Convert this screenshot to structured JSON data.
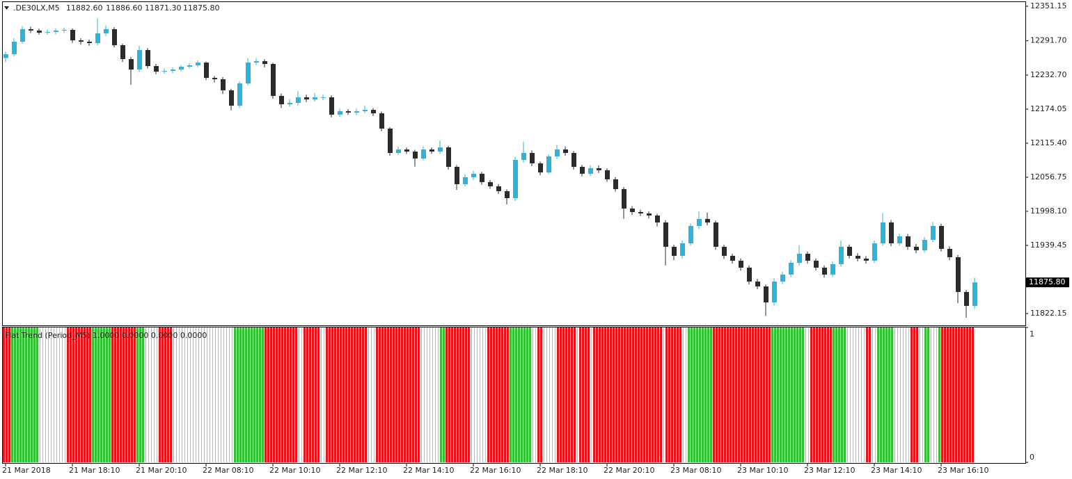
{
  "header": {
    "symbol": ".DE30LX,M5",
    "ohlc": [
      "11882.60",
      "11886.60",
      "11871.30",
      "11875.80"
    ]
  },
  "chart_data": [
    {
      "type": "candlestick",
      "up_color": "#2fb3da",
      "down_color": "#2b2b2b",
      "categories": [
        "21 Mar 2018",
        null,
        null,
        null,
        null,
        null,
        null,
        null,
        "21 Mar 18:10",
        null,
        null,
        null,
        null,
        null,
        null,
        null,
        "21 Mar 20:10",
        null,
        null,
        null,
        null,
        null,
        null,
        null,
        "22 Mar 08:10",
        null,
        null,
        null,
        null,
        null,
        null,
        null,
        "22 Mar 10:10",
        null,
        null,
        null,
        null,
        null,
        null,
        null,
        "22 Mar 12:10",
        null,
        null,
        null,
        null,
        null,
        null,
        null,
        "22 Mar 14:10",
        null,
        null,
        null,
        null,
        null,
        null,
        null,
        "22 Mar 16:10",
        null,
        null,
        null,
        null,
        null,
        null,
        null,
        "22 Mar 18:10",
        null,
        null,
        null,
        null,
        null,
        null,
        null,
        "22 Mar 20:10",
        null,
        null,
        null,
        null,
        null,
        null,
        null,
        "23 Mar 08:10",
        null,
        null,
        null,
        null,
        null,
        null,
        null,
        "23 Mar 10:10",
        null,
        null,
        null,
        null,
        null,
        null,
        null,
        "23 Mar 12:10",
        null,
        null,
        null,
        null,
        null,
        null,
        null,
        "23 Mar 14:10",
        null,
        null,
        null,
        null,
        null,
        null,
        null,
        "23 Mar 16:10",
        null,
        null,
        null,
        null
      ],
      "open": [
        12262.0,
        12268.6,
        12290.1,
        12311.7,
        12309.3,
        12305.7,
        12306.9,
        12309.3,
        12310.5,
        12292.5,
        12290.1,
        12287.7,
        12304.5,
        12311.7,
        12284.1,
        12260.2,
        12242.2,
        12275.8,
        12248.2,
        12238.6,
        12239.8,
        12242.2,
        12247.0,
        12249.4,
        12254.2,
        12227.9,
        12225.5,
        12206.4,
        12180.0,
        12218.3,
        12254.2,
        12256.6,
        12251.8,
        12196.8,
        12182.4,
        12184.8,
        12194.4,
        12190.8,
        12194.4,
        12194.4,
        12164.5,
        12170.5,
        12168.1,
        12170.5,
        12172.8,
        12166.8,
        12140.5,
        12098.6,
        12104.6,
        12101.0,
        12089.0,
        12104.6,
        12101.0,
        12108.2,
        12074.7,
        12044.8,
        12056.8,
        12062.8,
        12048.4,
        12041.2,
        12032.8,
        12020.8,
        12086.6,
        12098.6,
        12080.7,
        12065.1,
        12092.6,
        12104.6,
        12098.6,
        12074.7,
        12062.8,
        12072.3,
        12068.8,
        12053.2,
        12036.4,
        12002.9,
        11996.9,
        11994.5,
        11990.9,
        11978.9,
        11937.1,
        11921.5,
        11943.0,
        11972.9,
        11985.0,
        11978.9,
        11937.1,
        11921.5,
        11913.1,
        11901.1,
        11877.2,
        11868.8,
        11841.3,
        11877.2,
        11889.2,
        11909.5,
        11925.1,
        11913.1,
        11901.1,
        11889.2,
        11907.1,
        11937.1,
        11921.5,
        11916.7,
        11913.1,
        11943.0,
        11978.9,
        11943.0,
        11955.0,
        11937.1,
        11931.1,
        11949.0,
        11972.9,
        11933.5,
        11919.1,
        11859.3,
        11835.3
      ],
      "high": [
        12273.0,
        12296.0,
        12317.0,
        12316.0,
        12313.0,
        12311.0,
        12313.0,
        12314.0,
        12313.0,
        12296.0,
        12294.0,
        12330.0,
        12318.0,
        12315.0,
        12287.0,
        12264.0,
        12283.0,
        12279.0,
        12252.0,
        12244.0,
        12246.0,
        12250.0,
        12253.0,
        12258.0,
        12256.0,
        12231.0,
        12229.0,
        12209.0,
        12222.0,
        12262.0,
        12262.0,
        12260.0,
        12254.0,
        12201.0,
        12191.0,
        12205.0,
        12199.0,
        12202.0,
        12199.0,
        12198.0,
        12175.0,
        12174.0,
        12175.0,
        12180.0,
        12176.0,
        12170.0,
        12143.0,
        12110.0,
        12108.0,
        12104.0,
        12110.0,
        12108.0,
        12120.0,
        12111.0,
        12078.0,
        12062.0,
        12068.0,
        12066.0,
        12052.0,
        12045.0,
        12036.0,
        12092.0,
        12118.0,
        12103.0,
        12084.0,
        12096.0,
        12112.0,
        12110.0,
        12102.0,
        12078.0,
        12077.0,
        12077.0,
        12072.0,
        12057.0,
        12040.0,
        12007.0,
        12001.0,
        11998.0,
        11994.0,
        11983.0,
        11941.0,
        11948.0,
        11977.0,
        11998.0,
        11996.0,
        11982.0,
        11941.0,
        11925.0,
        11917.0,
        11905.0,
        11882.0,
        11872.0,
        11883.0,
        11894.0,
        11914.0,
        11940.0,
        11929.0,
        11917.0,
        11905.0,
        11912.0,
        11948.0,
        11941.0,
        11926.0,
        11921.0,
        11948.0,
        11995.0,
        11983.0,
        11960.0,
        11959.0,
        11942.0,
        11954.0,
        11980.0,
        11977.0,
        11938.0,
        11923.0,
        11863.0,
        11884.0
      ],
      "low": [
        12255.0,
        12265.0,
        12287.0,
        12305.0,
        12302.0,
        12302.0,
        12303.0,
        12305.0,
        12288.0,
        12285.0,
        12283.0,
        12284.0,
        12300.0,
        12280.0,
        12255.0,
        12216.0,
        12238.0,
        12244.0,
        12234.0,
        12235.0,
        12236.0,
        12239.0,
        12244.0,
        12246.0,
        12224.0,
        12220.0,
        12200.0,
        12172.0,
        12176.0,
        12215.0,
        12250.0,
        12246.0,
        12192.0,
        12176.0,
        12178.0,
        12180.0,
        12186.0,
        12187.0,
        12189.0,
        12160.0,
        12161.0,
        12164.0,
        12164.0,
        12167.0,
        12162.0,
        12136.0,
        12094.0,
        12095.0,
        12097.0,
        12075.0,
        12086.0,
        12097.0,
        12097.0,
        12070.0,
        12035.0,
        12041.0,
        12052.0,
        12044.0,
        12037.0,
        12028.0,
        12010.0,
        12016.0,
        12082.0,
        12076.0,
        12060.0,
        12062.0,
        12088.0,
        12094.0,
        12070.0,
        12058.0,
        12059.0,
        12064.0,
        12049.0,
        12032.0,
        11985.0,
        11992.0,
        11990.0,
        11986.0,
        11972.0,
        11905.0,
        11914.0,
        11917.0,
        11939.0,
        11968.0,
        11974.0,
        11932.0,
        11916.0,
        11908.0,
        11896.0,
        11872.0,
        11864.0,
        11818.0,
        11836.0,
        11873.0,
        11885.0,
        11905.0,
        11908.0,
        11896.0,
        11884.0,
        11885.0,
        11903.0,
        11917.0,
        11912.0,
        11908.0,
        11909.0,
        11939.0,
        11938.0,
        11939.0,
        11932.0,
        11926.0,
        11927.0,
        11945.0,
        11929.0,
        11914.0,
        11840.0,
        11815.0,
        11830.0
      ],
      "close": [
        12268.6,
        12290.1,
        12311.7,
        12309.3,
        12305.7,
        12306.9,
        12309.3,
        12310.5,
        12292.5,
        12290.1,
        12287.7,
        12304.5,
        12311.7,
        12284.1,
        12260.2,
        12242.2,
        12275.8,
        12248.2,
        12238.6,
        12239.8,
        12242.2,
        12247.0,
        12249.4,
        12254.2,
        12227.9,
        12225.5,
        12206.4,
        12180.0,
        12218.3,
        12254.2,
        12256.6,
        12251.8,
        12196.8,
        12182.4,
        12184.8,
        12194.4,
        12190.8,
        12194.4,
        12194.4,
        12164.5,
        12170.5,
        12168.1,
        12170.5,
        12172.8,
        12166.8,
        12140.5,
        12098.6,
        12104.6,
        12101.0,
        12089.0,
        12104.6,
        12101.0,
        12108.2,
        12074.7,
        12044.8,
        12056.8,
        12062.8,
        12048.4,
        12041.2,
        12032.8,
        12020.8,
        12086.6,
        12098.6,
        12080.7,
        12065.1,
        12092.6,
        12104.6,
        12098.6,
        12074.7,
        12062.8,
        12072.3,
        12068.8,
        12053.2,
        12036.4,
        12002.9,
        11996.9,
        11994.5,
        11990.9,
        11978.9,
        11937.1,
        11921.5,
        11943.0,
        11972.9,
        11985.0,
        11978.9,
        11937.1,
        11921.5,
        11913.1,
        11901.1,
        11877.2,
        11868.8,
        11841.3,
        11877.2,
        11889.2,
        11909.5,
        11925.1,
        11913.1,
        11901.1,
        11889.2,
        11907.1,
        11937.1,
        11921.5,
        11916.7,
        11913.1,
        11943.0,
        11978.9,
        11943.0,
        11955.0,
        11937.1,
        11931.1,
        11949.0,
        11972.9,
        11933.5,
        11919.1,
        11859.3,
        11835.3,
        11875.8
      ],
      "ylim": [
        11801.8,
        12359.5
      ],
      "yticks": [
        12351.15,
        {
          "value": 12291.7,
          "label": "12291.70"
        },
        {
          "value": 12232.7,
          "label": "12232.70"
        },
        12174.05,
        {
          "value": 12115.4,
          "label": "12115.40"
        },
        12056.75,
        {
          "value": 11998.1,
          "label": "11998.10"
        },
        11939.45,
        11822.15
      ],
      "current_price": {
        "value": 11875.8,
        "label": "11875.80"
      }
    },
    {
      "type": "histogram",
      "title": "Flat Trend (Period_M5) 1.0000 0.0000 0.0000 0.0000",
      "ylim": [
        0,
        1
      ],
      "yticks": [
        1,
        0
      ],
      "segments": [
        {
          "color": "#e8141c",
          "count": 3
        },
        {
          "color": "#35c135",
          "count": 10
        },
        {
          "color": "#8fd68f",
          "count": 10,
          "thin": true
        },
        {
          "color": "#e8141c",
          "count": 9
        },
        {
          "color": "#35c135",
          "count": 7
        },
        {
          "color": "#e8141c",
          "count": 9
        },
        {
          "color": "#35c135",
          "count": 3
        },
        {
          "color": "#8fd68f",
          "count": 5,
          "thin": true
        },
        {
          "color": "#e8141c",
          "count": 5
        },
        {
          "color": "#e4a3a3",
          "count": 22,
          "thin": true
        },
        {
          "color": "#35c135",
          "count": 11
        },
        {
          "color": "#e8141c",
          "count": 12
        },
        {
          "color": "#e4a3a3",
          "count": 2,
          "thin": true
        },
        {
          "color": "#e8141c",
          "count": 6
        },
        {
          "color": "#8fd68f",
          "count": 2,
          "thin": true
        },
        {
          "color": "#e8141c",
          "count": 15
        },
        {
          "color": "#e4a3a3",
          "count": 3,
          "thin": true
        },
        {
          "color": "#e8141c",
          "count": 16
        },
        {
          "color": "#8fd68f",
          "count": 7,
          "thin": true
        },
        {
          "color": "#35c135",
          "count": 2
        },
        {
          "color": "#e8141c",
          "count": 9
        },
        {
          "color": "#8fd68f",
          "count": 6,
          "thin": true
        },
        {
          "color": "#e8141c",
          "count": 8
        },
        {
          "color": "#35c135",
          "count": 8
        },
        {
          "color": "#8fd68f",
          "count": 2,
          "thin": true
        },
        {
          "color": "#e8141c",
          "count": 2
        },
        {
          "color": "#e4a3a3",
          "count": 5,
          "thin": true
        },
        {
          "color": "#e8141c",
          "count": 7
        },
        {
          "color": "#e4a3a3",
          "count": 1,
          "thin": true
        },
        {
          "color": "#e8141c",
          "count": 4
        },
        {
          "color": "#e4a3a3",
          "count": 1,
          "thin": true
        },
        {
          "color": "#e8141c",
          "count": 25
        },
        {
          "color": "#e4a3a3",
          "count": 1,
          "thin": true
        },
        {
          "color": "#e8141c",
          "count": 6
        },
        {
          "color": "#8fd68f",
          "count": 2,
          "thin": true
        },
        {
          "color": "#35c135",
          "count": 9
        },
        {
          "color": "#e8141c",
          "count": 21
        },
        {
          "color": "#35c135",
          "count": 12
        },
        {
          "color": "#e4a3a3",
          "count": 2,
          "thin": true
        },
        {
          "color": "#e8141c",
          "count": 8
        },
        {
          "color": "#35c135",
          "count": 5
        },
        {
          "color": "#8fd68f",
          "count": 3,
          "thin": true
        },
        {
          "color": "#e4a3a3",
          "count": 4,
          "thin": true
        },
        {
          "color": "#e8141c",
          "count": 2
        },
        {
          "color": "#8fd68f",
          "count": 2,
          "thin": true
        },
        {
          "color": "#35c135",
          "count": 6
        },
        {
          "color": "#e4a3a3",
          "count": 6,
          "thin": true
        },
        {
          "color": "#e8141c",
          "count": 3
        },
        {
          "color": "#e4a3a3",
          "count": 2,
          "thin": true
        },
        {
          "color": "#35c135",
          "count": 2
        },
        {
          "color": "#8fd68f",
          "count": 3,
          "thin": true
        },
        {
          "color": "#35c135",
          "count": 1
        },
        {
          "color": "#e8141c",
          "count": 12
        }
      ]
    }
  ]
}
